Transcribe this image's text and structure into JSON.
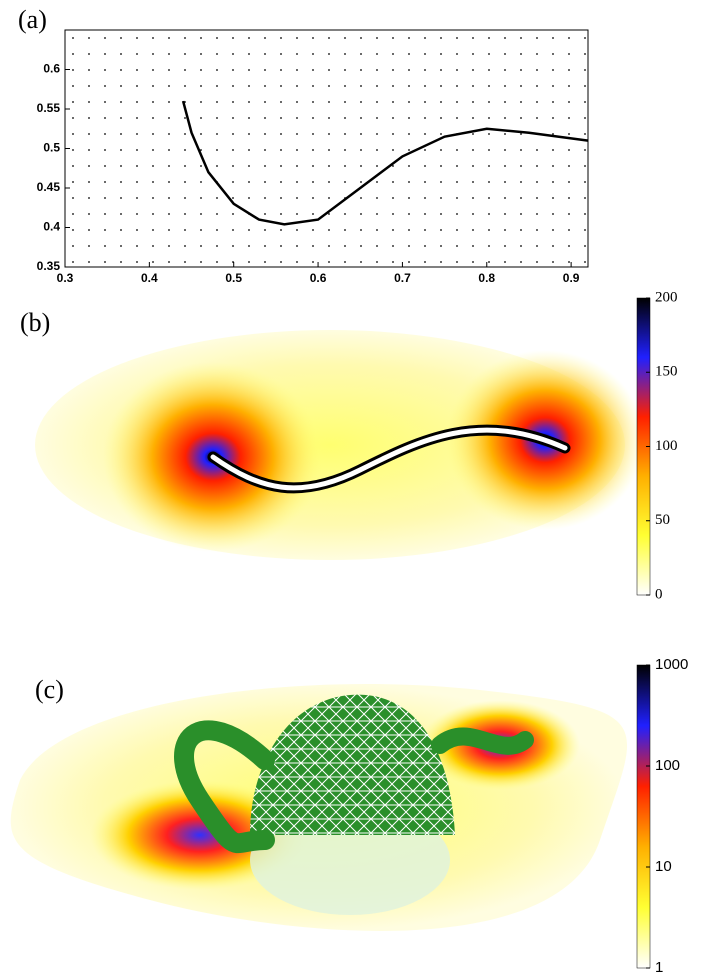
{
  "chart_data": [
    {
      "type": "line",
      "label": "(a)",
      "xlim": [
        0.3,
        0.92
      ],
      "ylim": [
        0.35,
        0.65
      ],
      "xticks": [
        0.3,
        0.4,
        0.5,
        0.6,
        0.7,
        0.8,
        0.9
      ],
      "yticks": [
        0.35,
        0.4,
        0.45,
        0.5,
        0.55,
        0.6
      ],
      "series": [
        {
          "color": "#000000",
          "x": [
            0.44,
            0.45,
            0.47,
            0.5,
            0.53,
            0.56,
            0.6,
            0.65,
            0.7,
            0.75,
            0.8,
            0.85,
            0.92
          ],
          "y": [
            0.56,
            0.52,
            0.47,
            0.43,
            0.41,
            0.404,
            0.41,
            0.45,
            0.49,
            0.515,
            0.525,
            0.52,
            0.51
          ]
        }
      ]
    },
    {
      "type": "heatmap",
      "label": "(b)",
      "colorbar": {
        "lim": [
          0,
          200
        ],
        "ticks": [
          0,
          50,
          100,
          150,
          200
        ],
        "scale": "linear",
        "colormap": [
          "#ffffff",
          "#ffff33",
          "#ffb000",
          "#ff2000",
          "#2020ff",
          "#000000"
        ]
      }
    },
    {
      "type": "heatmap",
      "label": "(c)",
      "colorbar": {
        "lim": [
          1,
          1000
        ],
        "ticks": [
          1,
          10,
          100,
          1000
        ],
        "scale": "log",
        "colormap": [
          "#ffffff",
          "#ffff33",
          "#ffb000",
          "#ff2000",
          "#2020ff",
          "#000000"
        ]
      }
    }
  ]
}
